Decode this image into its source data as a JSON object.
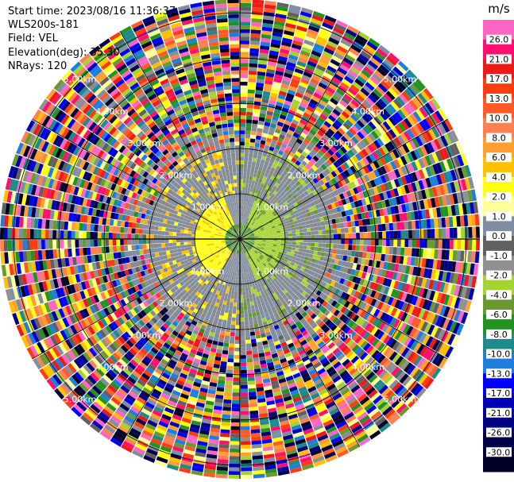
{
  "header": {
    "start_time": "Start time: 2023/08/16 11:36:37",
    "instrument": "WLS200s-181",
    "field": "Field: VEL",
    "elevation": "Elevation(deg): 35.30",
    "nrays": "NRays: 120"
  },
  "chart_data": {
    "type": "heatmap",
    "projection": "polar-ppi",
    "field": "VEL",
    "n_rays": 120,
    "range_rings_km": [
      1.0,
      2.0,
      3.0,
      4.0,
      5.0
    ],
    "ring_labels": [
      "1.00km",
      "2.00km",
      "3.00km",
      "4.00km",
      "5.00km"
    ],
    "colorbar": {
      "title": "m/s",
      "ticks": [
        "26.0",
        "21.0",
        "17.0",
        "13.0",
        "10.0",
        "8.0",
        "6.0",
        "4.0",
        "2.0",
        "1.0",
        "0.0",
        "-1.0",
        "-2.0",
        "-4.0",
        "-6.0",
        "-8.0",
        "-10.0",
        "-13.0",
        "-17.0",
        "-21.0",
        "-26.0",
        "-30.0"
      ],
      "colors": [
        "#ff66c4",
        "#ff1070",
        "#ee1a1a",
        "#ff3c10",
        "#ff5a28",
        "#ff8050",
        "#ffa030",
        "#ffc000",
        "#ffff10",
        "#ffff9a",
        "#7f8ea2",
        "#606060",
        "#909090",
        "#a6d334",
        "#6a9a2e",
        "#229222",
        "#1e8a8a",
        "#1e7ee0",
        "#0000ff",
        "#0000b4",
        "#000080",
        "#000048",
        "#000028"
      ]
    },
    "grid": true
  },
  "colors": {
    "background": "#ffffff",
    "ring_line": "#000000"
  }
}
